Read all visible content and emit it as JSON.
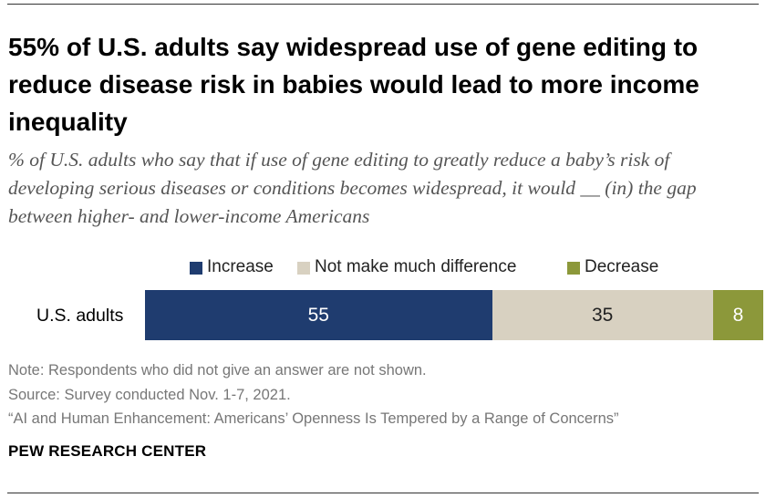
{
  "title": "55% of U.S. adults say widespread use of gene editing to reduce disease risk in babies would lead to more income inequality",
  "subtitle": "% of U.S. adults who say that if use of gene editing to greatly reduce a baby’s risk of developing serious diseases or conditions becomes widespread, it would __ (in) the gap between higher- and lower-income Americans",
  "chart_data": {
    "type": "bar",
    "orientation": "horizontal",
    "stacked": true,
    "categories": [
      "U.S. adults"
    ],
    "series": [
      {
        "name": "Increase",
        "values": [
          55
        ],
        "color": "#1f3c6f",
        "label_color": "#ffffff"
      },
      {
        "name": "Not make much difference",
        "values": [
          35
        ],
        "color": "#d8d1c1",
        "label_color": "#222222"
      },
      {
        "name": "Decrease",
        "values": [
          8
        ],
        "color": "#8c983a",
        "label_color": "#ffffff"
      }
    ],
    "xlim": [
      0,
      100
    ],
    "legend_position": "top",
    "grid": false
  },
  "notes": {
    "note": "Note: Respondents who did not give an answer are not shown.",
    "source": "Source: Survey conducted Nov. 1-7, 2021.",
    "report": "“AI and Human Enhancement: Americans’ Openness Is Tempered by a Range of Concerns”"
  },
  "brand": "PEW RESEARCH CENTER"
}
